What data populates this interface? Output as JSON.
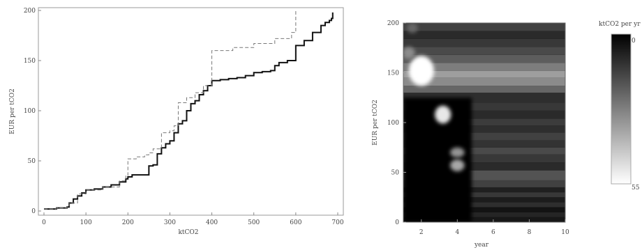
{
  "chart_data": [
    {
      "type": "line",
      "xlabel": "ktCO2",
      "ylabel": "EUR per tCO2",
      "xlim": [
        0,
        700
      ],
      "ylim": [
        0,
        200
      ],
      "xticks": [
        "0",
        "100",
        "200",
        "300",
        "400",
        "500",
        "600",
        "700"
      ],
      "yticks": [
        "0",
        "50",
        "100",
        "150",
        "200"
      ],
      "grid": false,
      "series": [
        {
          "style": "solid",
          "color": "#111111",
          "x": [
            0,
            10,
            30,
            55,
            60,
            70,
            80,
            90,
            100,
            120,
            140,
            160,
            180,
            195,
            200,
            210,
            230,
            240,
            250,
            260,
            270,
            280,
            290,
            300,
            310,
            320,
            330,
            340,
            350,
            360,
            370,
            380,
            390,
            400,
            420,
            440,
            460,
            480,
            500,
            520,
            540,
            550,
            560,
            580,
            600,
            620,
            640,
            660,
            670,
            680,
            685,
            688
          ],
          "y": [
            2,
            2,
            3,
            4,
            8,
            12,
            15,
            18,
            21,
            22,
            24,
            26,
            29,
            32,
            34,
            36,
            36,
            36,
            45,
            46,
            57,
            63,
            67,
            70,
            78,
            87,
            90,
            100,
            107,
            110,
            116,
            120,
            125,
            130,
            131,
            132,
            133,
            135,
            138,
            139,
            140,
            145,
            148,
            150,
            165,
            170,
            178,
            185,
            188,
            190,
            192,
            198
          ]
        },
        {
          "style": "dashed",
          "color": "#777777",
          "x": [
            0,
            30,
            55,
            60,
            80,
            100,
            140,
            180,
            195,
            200,
            220,
            240,
            250,
            260,
            280,
            300,
            310,
            320,
            340,
            360,
            380,
            400,
            450,
            500,
            550,
            590,
            600
          ],
          "y": [
            2,
            3,
            5,
            8,
            17,
            21,
            24,
            30,
            35,
            52,
            54,
            56,
            58,
            62,
            78,
            80,
            85,
            108,
            113,
            118,
            125,
            160,
            163,
            167,
            172,
            178,
            200
          ]
        }
      ]
    },
    {
      "type": "heatmap",
      "xlabel": "year",
      "ylabel": "EUR per tCO2",
      "colorbar_label": "ktCO2 per yr",
      "xlim": [
        1,
        10
      ],
      "ylim": [
        0,
        200
      ],
      "xticks": [
        "2",
        "4",
        "6",
        "8",
        "10"
      ],
      "yticks": [
        "0",
        "50",
        "100",
        "150",
        "200"
      ],
      "colorbar_ticks": [
        "0",
        "55"
      ],
      "colorbar_range": [
        0,
        55
      ],
      "cmap": "black-to-white",
      "bands": [
        {
          "y0": 0,
          "y1": 5,
          "value": 5
        },
        {
          "y0": 5,
          "y1": 10,
          "value": 8
        },
        {
          "y0": 10,
          "y1": 15,
          "value": 4
        },
        {
          "y0": 15,
          "y1": 20,
          "value": 10
        },
        {
          "y0": 20,
          "y1": 25,
          "value": 6
        },
        {
          "y0": 25,
          "y1": 30,
          "value": 12
        },
        {
          "y0": 30,
          "y1": 35,
          "value": 7
        },
        {
          "y0": 35,
          "y1": 42,
          "value": 14
        },
        {
          "y0": 42,
          "y1": 52,
          "value": 18
        },
        {
          "y0": 52,
          "y1": 60,
          "value": 9
        },
        {
          "y0": 60,
          "y1": 68,
          "value": 12
        },
        {
          "y0": 68,
          "y1": 75,
          "value": 16
        },
        {
          "y0": 75,
          "y1": 82,
          "value": 11
        },
        {
          "y0": 82,
          "y1": 90,
          "value": 14
        },
        {
          "y0": 90,
          "y1": 97,
          "value": 10
        },
        {
          "y0": 97,
          "y1": 104,
          "value": 13
        },
        {
          "y0": 104,
          "y1": 112,
          "value": 9
        },
        {
          "y0": 112,
          "y1": 120,
          "value": 12
        },
        {
          "y0": 120,
          "y1": 130,
          "value": 10
        },
        {
          "y0": 130,
          "y1": 137,
          "value": 22
        },
        {
          "y0": 137,
          "y1": 145,
          "value": 30
        },
        {
          "y0": 145,
          "y1": 152,
          "value": 34
        },
        {
          "y0": 152,
          "y1": 160,
          "value": 27
        },
        {
          "y0": 160,
          "y1": 168,
          "value": 20
        },
        {
          "y0": 168,
          "y1": 176,
          "value": 16
        },
        {
          "y0": 176,
          "y1": 184,
          "value": 12
        },
        {
          "y0": 184,
          "y1": 192,
          "value": 9
        },
        {
          "y0": 192,
          "y1": 200,
          "value": 14
        }
      ],
      "blobs": [
        {
          "x": 2.0,
          "y": 152,
          "rx": 0.7,
          "ry": 15,
          "value": 55
        },
        {
          "x": 3.2,
          "y": 108,
          "rx": 0.45,
          "ry": 9,
          "value": 50
        },
        {
          "x": 4.0,
          "y": 70,
          "rx": 0.4,
          "ry": 5,
          "value": 32
        },
        {
          "x": 4.0,
          "y": 57,
          "rx": 0.4,
          "ry": 6,
          "value": 36
        },
        {
          "x": 1.3,
          "y": 170,
          "rx": 0.35,
          "ry": 6,
          "value": 30
        },
        {
          "x": 1.5,
          "y": 195,
          "rx": 0.3,
          "ry": 5,
          "value": 22
        }
      ],
      "dark_region": {
        "x_to": 4.8,
        "y_to": 125,
        "value": 0
      }
    }
  ]
}
